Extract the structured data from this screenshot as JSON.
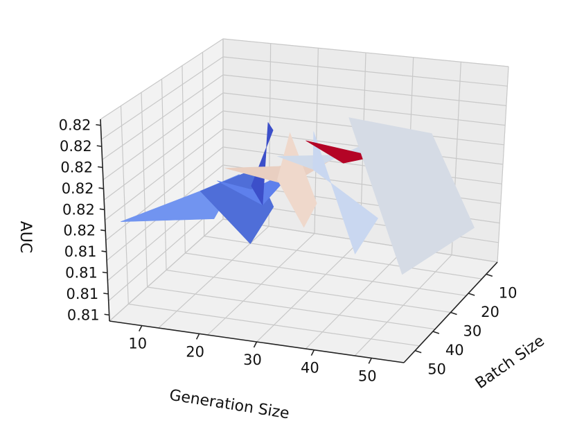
{
  "chart_data": {
    "type": "surface3d",
    "title": "",
    "xlabel": "Generation Size",
    "ylabel": "Batch Size",
    "zlabel": "AUC",
    "x_ticks": [
      "10",
      "20",
      "30",
      "40",
      "50"
    ],
    "y_ticks": [
      "10",
      "20",
      "30",
      "40",
      "50"
    ],
    "z_ticks": [
      "0.81",
      "0.81",
      "0.81",
      "0.81",
      "0.82",
      "0.82",
      "0.82",
      "0.82",
      "0.82",
      "0.82"
    ],
    "zlim": [
      0.8125,
      0.8225
    ],
    "colormap": "coolwarm",
    "grid": true,
    "x": [
      10,
      20,
      30,
      40,
      50
    ],
    "y": [
      10,
      20,
      30,
      40,
      50
    ],
    "z": [
      [
        0.817,
        0.8175,
        0.82,
        0.821,
        0.8225
      ],
      [
        0.8168,
        0.8173,
        0.8198,
        0.8208,
        0.8223
      ],
      [
        0.8165,
        0.817,
        0.8196,
        0.8206,
        0.8221
      ],
      [
        0.8163,
        0.8168,
        0.8194,
        0.8204,
        0.8219
      ],
      [
        0.816,
        0.8165,
        0.8192,
        0.8202,
        0.8217
      ]
    ],
    "surface_polygons": [
      {
        "vals": [
          0.817,
          0.8168,
          0.816,
          0.813
        ],
        "color": "#7194f0"
      },
      {
        "vals": [
          0.8168,
          0.8165,
          0.814,
          0.812
        ],
        "color": "#4f6ed8"
      },
      {
        "vals": [
          0.8175,
          0.8173,
          0.8165,
          0.814
        ],
        "color": "#5e80ec"
      },
      {
        "vals": [
          0.814,
          0.8175,
          0.82,
          0.819
        ],
        "color": "#3c4fc9"
      },
      {
        "vals": [
          0.82,
          0.8196,
          0.8192,
          0.818
        ],
        "color": "#e9cfc1"
      },
      {
        "vals": [
          0.82,
          0.8198,
          0.8165,
          0.815
        ],
        "color": "#efd8cb"
      },
      {
        "vals": [
          0.821,
          0.8206,
          0.8202,
          0.818
        ],
        "color": "#cfdaea"
      },
      {
        "vals": [
          0.821,
          0.8208,
          0.815,
          0.812
        ],
        "color": "#c9d7f0"
      },
      {
        "vals": [
          0.8225,
          0.8221,
          0.8217,
          0.82
        ],
        "color": "#b40426"
      },
      {
        "vals": [
          0.8225,
          0.8223,
          0.815,
          0.811
        ],
        "color": "#d5dbe5"
      }
    ]
  }
}
